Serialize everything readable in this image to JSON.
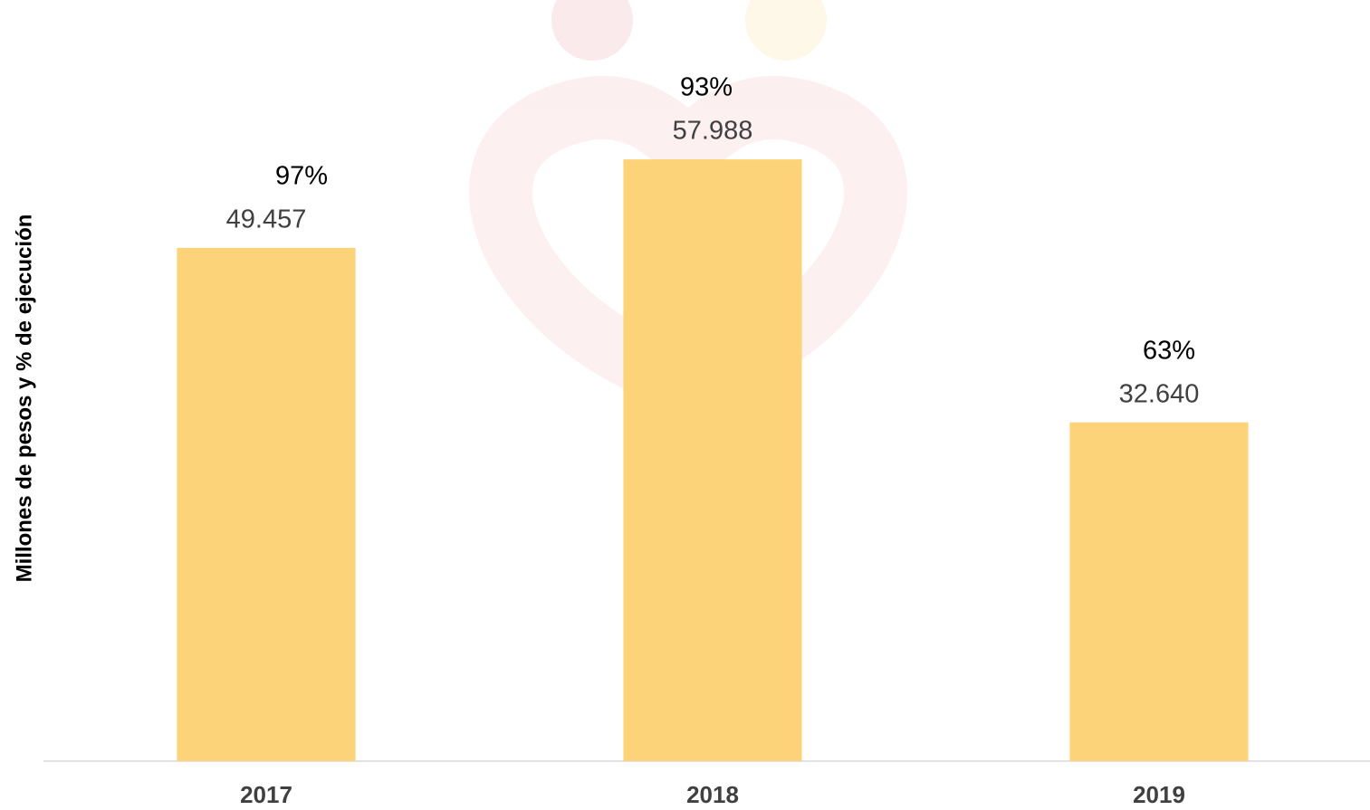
{
  "chart_data": {
    "type": "bar",
    "y_axis_label": "Millones de pesos y % de ejecución",
    "categories": [
      "2017",
      "2018",
      "2019"
    ],
    "values": [
      49457,
      57988,
      32640
    ],
    "value_labels": [
      "49.457",
      "57.988",
      "32.640"
    ],
    "percent_values": [
      97,
      93,
      63
    ],
    "percent_labels": [
      "97%",
      "93%",
      "63%"
    ],
    "color": "#fdd37a",
    "ylim": [
      0,
      60000
    ]
  }
}
